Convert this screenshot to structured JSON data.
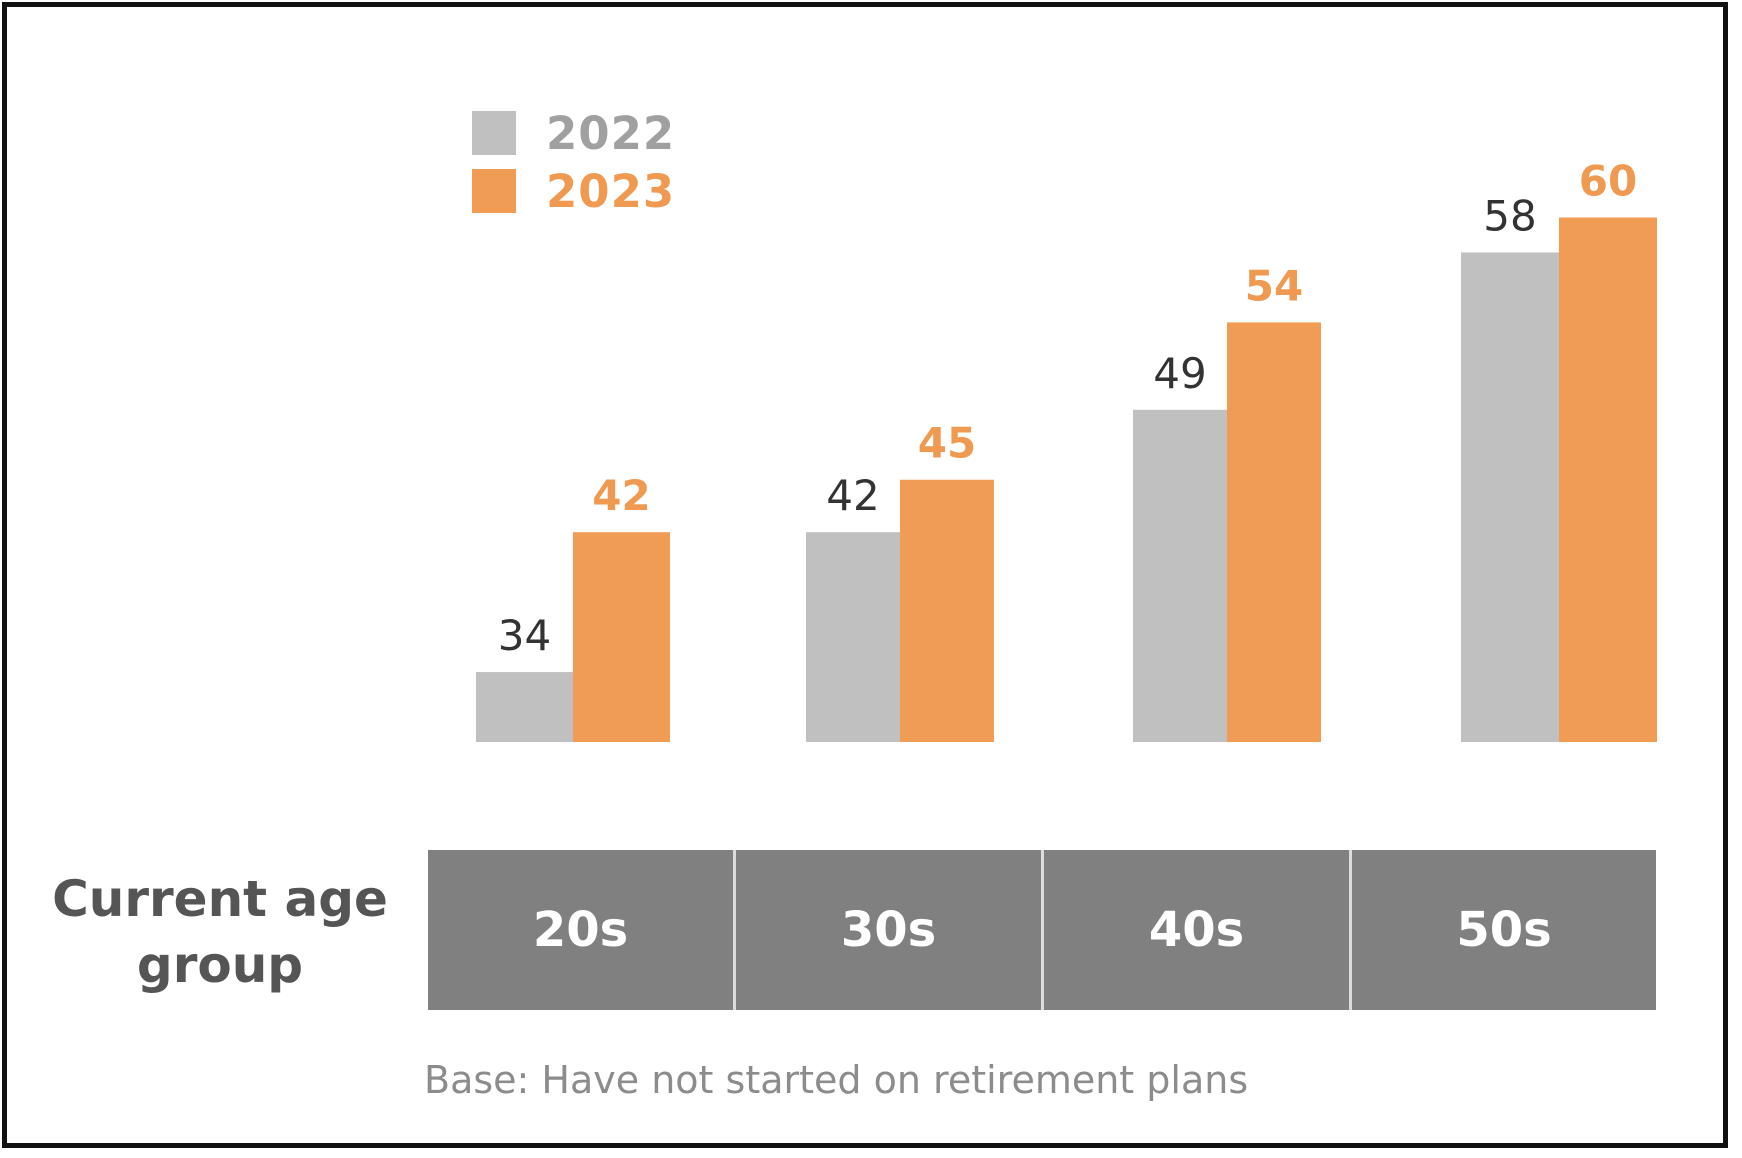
{
  "chart_data": {
    "type": "bar",
    "categories": [
      "20s",
      "30s",
      "40s",
      "50s"
    ],
    "series": [
      {
        "name": "2022",
        "values": [
          34,
          42,
          49,
          58
        ],
        "color": "#c0c0c0",
        "label_color": "#333333"
      },
      {
        "name": "2023",
        "values": [
          42,
          45,
          54,
          60
        ],
        "color": "#f09c55",
        "label_color": "#ef9a50"
      }
    ],
    "xlabel": "Current age group",
    "ylabel": "",
    "ylim": [
      30,
      61
    ],
    "grid": false,
    "legend": "top-left",
    "note": "Base: Have not started on retirement plans"
  }
}
